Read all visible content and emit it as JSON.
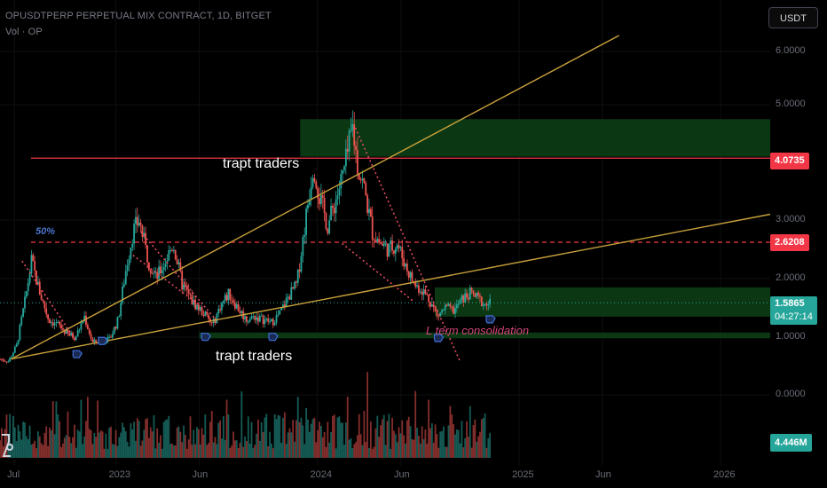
{
  "header": {
    "title": "OPUSDTPERP PERPETUAL MIX CONTRACT, 1D, BITGET",
    "volume_label": "Vol · OP"
  },
  "currency_button": "USDT",
  "colors": {
    "up": "#26a69a",
    "down": "#ef5350",
    "trendline": "#c9a13b",
    "zone": "#0c3a14",
    "support": "#1b5e2a",
    "red_line": "#f23645",
    "dotted": "#e04b60",
    "arrow": "#3f6fd8",
    "label_pink": "#d4467a",
    "label_blue": "#4a72c8"
  },
  "price_tags": {
    "level_upper": "4.0735",
    "level_mid": "2.6208",
    "last_price": "1.5865",
    "countdown": "04:27:14",
    "volume": "4.446M"
  },
  "annotations": {
    "trapt_top": "trapt traders",
    "trapt_bottom": "trapt traders",
    "fifty": "50%",
    "consolidation": "L term consolidation"
  },
  "chart_data": {
    "type": "candlestick",
    "title": "OPUSDTPERP PERPETUAL MIX CONTRACT, 1D, BITGET",
    "y_axis": {
      "ticks": [
        "6.0000",
        "5.0000",
        "3.0000",
        "2.0000",
        "1.0000",
        "0.0000"
      ],
      "tick_values": [
        6,
        5,
        3,
        2,
        1,
        0
      ]
    },
    "x_axis": {
      "ticks": [
        "Jul",
        "2023",
        "Jun",
        "2024",
        "Jun",
        "2025",
        "Jun",
        "2026"
      ],
      "tick_dates": [
        "2022-07-01",
        "2023-01-01",
        "2023-06-01",
        "2024-01-01",
        "2024-06-01",
        "2025-01-01",
        "2025-06-01",
        "2026-01-01"
      ],
      "range": [
        "2022-06-05",
        "2026-04-01"
      ]
    },
    "price_path": [
      [
        "2022-06-05",
        0.62
      ],
      [
        "2022-06-20",
        0.58
      ],
      [
        "2022-07-05",
        0.85
      ],
      [
        "2022-07-20",
        1.6
      ],
      [
        "2022-08-01",
        2.3
      ],
      [
        "2022-08-15",
        1.8
      ],
      [
        "2022-09-01",
        1.3
      ],
      [
        "2022-09-20",
        1.2
      ],
      [
        "2022-10-05",
        1.05
      ],
      [
        "2022-10-20",
        1.0
      ],
      [
        "2022-11-05",
        1.35
      ],
      [
        "2022-11-20",
        0.9
      ],
      [
        "2022-12-05",
        0.95
      ],
      [
        "2022-12-20",
        0.95
      ],
      [
        "2023-01-05",
        1.3
      ],
      [
        "2023-01-20",
        2.2
      ],
      [
        "2023-02-01",
        2.8
      ],
      [
        "2023-02-12",
        3.0
      ],
      [
        "2023-03-01",
        2.3
      ],
      [
        "2023-03-15",
        2.0
      ],
      [
        "2023-04-01",
        2.3
      ],
      [
        "2023-04-15",
        2.6
      ],
      [
        "2023-05-01",
        1.9
      ],
      [
        "2023-05-20",
        1.6
      ],
      [
        "2023-06-10",
        1.4
      ],
      [
        "2023-06-25",
        1.2
      ],
      [
        "2023-07-10",
        1.55
      ],
      [
        "2023-07-25",
        1.75
      ],
      [
        "2023-08-10",
        1.5
      ],
      [
        "2023-08-25",
        1.3
      ],
      [
        "2023-09-10",
        1.35
      ],
      [
        "2023-09-25",
        1.3
      ],
      [
        "2023-10-10",
        1.25
      ],
      [
        "2023-10-25",
        1.4
      ],
      [
        "2023-11-10",
        1.7
      ],
      [
        "2023-11-25",
        1.9
      ],
      [
        "2023-12-05",
        2.6
      ],
      [
        "2023-12-15",
        3.3
      ],
      [
        "2023-12-25",
        4.0
      ],
      [
        "2024-01-05",
        3.4
      ],
      [
        "2024-01-20",
        2.9
      ],
      [
        "2024-02-05",
        3.4
      ],
      [
        "2024-02-20",
        3.9
      ],
      [
        "2024-03-05",
        4.6
      ],
      [
        "2024-03-15",
        3.9
      ],
      [
        "2024-03-25",
        3.6
      ],
      [
        "2024-04-10",
        2.8
      ],
      [
        "2024-04-25",
        2.6
      ],
      [
        "2024-05-10",
        2.5
      ],
      [
        "2024-05-25",
        2.6
      ],
      [
        "2024-06-10",
        2.2
      ],
      [
        "2024-06-25",
        1.9
      ],
      [
        "2024-07-10",
        1.8
      ],
      [
        "2024-07-25",
        1.6
      ],
      [
        "2024-08-05",
        1.35
      ],
      [
        "2024-08-20",
        1.5
      ],
      [
        "2024-09-05",
        1.45
      ],
      [
        "2024-09-20",
        1.65
      ],
      [
        "2024-10-05",
        1.75
      ],
      [
        "2024-10-20",
        1.65
      ],
      [
        "2024-11-01",
        1.55
      ],
      [
        "2024-11-10",
        1.5865
      ]
    ],
    "levels": [
      {
        "price": 4.0735,
        "style": "solid",
        "color": "#f23645"
      },
      {
        "price": 2.6208,
        "style": "dashed",
        "color": "#f23645",
        "label": "50%"
      }
    ],
    "zones": [
      {
        "from": "2023-12-01",
        "to": "2026-04-01",
        "low": 4.1,
        "high": 4.75
      },
      {
        "from": "2024-08-01",
        "to": "2026-04-01",
        "low": 1.35,
        "high": 1.85
      },
      {
        "from": "2023-06-01",
        "to": "2026-04-01",
        "low": 0.98,
        "high": 1.08
      }
    ],
    "trendlines": [
      {
        "from": [
          "2022-06-25",
          0.62
        ],
        "to": [
          "2025-07-01",
          6.3
        ]
      },
      {
        "from": [
          "2022-06-25",
          0.62
        ],
        "to": [
          "2026-04-01",
          3.1
        ]
      }
    ],
    "dotted_lines": [
      [
        [
          "2022-07-15",
          2.3
        ],
        [
          "2022-10-20",
          0.95
        ]
      ],
      [
        [
          "2023-02-15",
          2.8
        ],
        [
          "2023-07-01",
          1.3
        ]
      ],
      [
        [
          "2023-02-01",
          2.4
        ],
        [
          "2023-06-01",
          1.55
        ]
      ],
      [
        [
          "2024-02-15",
          2.6
        ],
        [
          "2024-06-25",
          1.6
        ]
      ],
      [
        [
          "2024-03-10",
          4.6
        ],
        [
          "2024-09-15",
          0.6
        ]
      ]
    ],
    "last_price": 1.5865,
    "volume_last": "4.446M"
  }
}
